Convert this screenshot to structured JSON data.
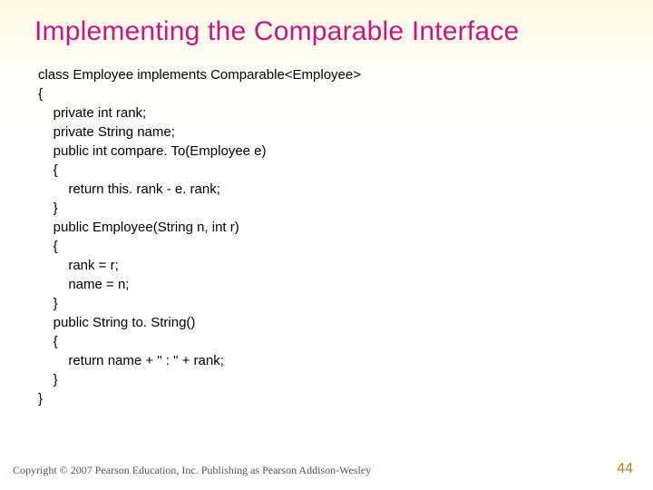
{
  "title": "Implementing the Comparable Interface",
  "title_color": "#c71585",
  "code_fontsize": 15,
  "code_color": "#000000",
  "code": {
    "l0": "class Employee implements Comparable<Employee>",
    "l1": "{",
    "l2": "    private int rank;",
    "l3": "    private String name;",
    "l4": "    public int compare. To(Employee e)",
    "l5": "    {",
    "l6": "        return this. rank - e. rank;",
    "l7": "    }",
    "l8": "    public Employee(String n, int r)",
    "l9": "    {",
    "l10": "        rank = r;",
    "l11": "        name = n;",
    "l12": "    }",
    "l13": "    public String to. String()",
    "l14": "    {",
    "l15": "        return name + \" : \" + rank;",
    "l16": "    }",
    "l17": "}"
  },
  "footer": "Copyright © 2007 Pearson Education, Inc. Publishing as Pearson Addison-Wesley",
  "page_number": "44",
  "page_number_color": "#b0841e",
  "background_gradient": [
    "#fff9e0",
    "#fffef8",
    "#ffffff"
  ]
}
